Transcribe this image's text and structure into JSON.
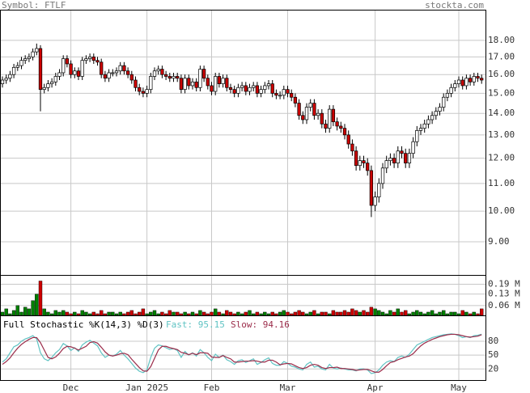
{
  "header": {
    "symbol": "Symbol: FTLF",
    "site": "stockta.com"
  },
  "chart_data": [
    {
      "type": "candlestick",
      "log_scale": true,
      "grid": true,
      "up_color": "#ffffff",
      "down_color": "#cc0000",
      "outline_color": "#000000",
      "ylim": [
        8.03,
        20.0
      ],
      "yticks": [
        {
          "value": 18,
          "label": "18.00"
        },
        {
          "value": 17,
          "label": "17.00"
        },
        {
          "value": 16,
          "label": "16.00"
        },
        {
          "value": 15,
          "label": "15.00"
        },
        {
          "value": 14,
          "label": "14.00"
        },
        {
          "value": 13,
          "label": "13.00"
        },
        {
          "value": 12,
          "label": "12.00"
        },
        {
          "value": 11,
          "label": "11.00"
        },
        {
          "value": 10,
          "label": "10.00"
        },
        {
          "value": 9,
          "label": "9.00"
        }
      ],
      "categories": [
        null,
        null,
        null,
        null,
        null,
        null,
        null,
        null,
        null,
        null,
        null,
        null,
        null,
        null,
        null,
        null,
        null,
        null,
        "Dec",
        null,
        null,
        null,
        null,
        null,
        null,
        null,
        null,
        null,
        null,
        null,
        null,
        null,
        null,
        null,
        null,
        null,
        null,
        null,
        "Jan 2025",
        null,
        null,
        null,
        null,
        null,
        null,
        null,
        null,
        null,
        null,
        null,
        null,
        null,
        null,
        null,
        null,
        "Feb",
        null,
        null,
        null,
        null,
        null,
        null,
        null,
        null,
        null,
        null,
        null,
        null,
        null,
        null,
        null,
        null,
        null,
        null,
        null,
        "Mar",
        null,
        null,
        null,
        null,
        null,
        null,
        null,
        null,
        null,
        null,
        null,
        null,
        null,
        null,
        null,
        null,
        null,
        null,
        null,
        null,
        null,
        null,
        "Apr",
        null,
        null,
        null,
        null,
        null,
        null,
        null,
        null,
        null,
        null,
        null,
        null,
        null,
        null,
        null,
        null,
        null,
        null,
        null,
        null,
        null,
        "May",
        null,
        null,
        null,
        null,
        null,
        null
      ],
      "open": [
        15.5,
        15.7,
        15.8,
        16.0,
        16.4,
        16.5,
        16.8,
        16.9,
        17.0,
        17.3,
        17.5,
        15.2,
        15.3,
        15.5,
        15.6,
        15.9,
        16.1,
        16.9,
        16.6,
        16.0,
        16.2,
        15.9,
        16.8,
        16.9,
        17.0,
        16.8,
        16.7,
        16.0,
        15.8,
        16.1,
        16.1,
        16.2,
        16.5,
        16.2,
        16.0,
        15.7,
        15.3,
        15.1,
        15.0,
        15.2,
        15.9,
        16.2,
        16.3,
        16.0,
        15.9,
        15.8,
        15.9,
        15.8,
        15.2,
        15.8,
        15.4,
        15.6,
        15.3,
        16.3,
        15.8,
        15.4,
        15.1,
        15.9,
        15.5,
        15.8,
        15.3,
        15.2,
        15.0,
        15.3,
        15.4,
        15.1,
        15.3,
        15.4,
        15.0,
        15.2,
        15.4,
        15.5,
        15.0,
        14.9,
        14.9,
        15.2,
        15.0,
        14.8,
        14.5,
        13.9,
        13.7,
        14.3,
        14.5,
        13.9,
        14.0,
        13.5,
        13.3,
        14.2,
        13.6,
        13.4,
        13.3,
        13.0,
        12.6,
        12.3,
        11.7,
        11.9,
        11.8,
        11.5,
        10.2,
        10.5,
        11.0,
        11.6,
        11.9,
        12.0,
        11.8,
        12.3,
        12.2,
        11.8,
        12.2,
        12.7,
        13.2,
        13.3,
        13.5,
        13.7,
        13.9,
        14.1,
        14.3,
        14.8,
        15.0,
        15.3,
        15.5,
        15.7,
        15.4,
        15.8,
        15.6,
        15.9,
        15.8
      ],
      "high": [
        15.9,
        16.0,
        16.2,
        16.6,
        16.7,
        17.0,
        17.1,
        17.2,
        17.5,
        17.8,
        17.7,
        15.5,
        15.7,
        15.8,
        16.1,
        16.3,
        17.1,
        17.1,
        16.8,
        16.4,
        16.4,
        17.0,
        17.1,
        17.2,
        17.2,
        17.0,
        16.9,
        16.2,
        16.3,
        16.3,
        16.4,
        16.7,
        16.7,
        16.4,
        16.2,
        15.9,
        15.5,
        15.3,
        15.4,
        16.1,
        16.4,
        16.5,
        16.5,
        16.2,
        16.1,
        16.1,
        16.1,
        16.0,
        16.0,
        16.0,
        15.8,
        15.8,
        16.5,
        16.5,
        16.0,
        15.6,
        16.1,
        16.1,
        16.0,
        16.0,
        15.5,
        15.4,
        15.5,
        15.6,
        15.6,
        15.5,
        15.6,
        15.6,
        15.4,
        15.6,
        15.7,
        15.7,
        15.2,
        15.1,
        15.4,
        15.4,
        15.2,
        15.0,
        14.7,
        14.1,
        14.5,
        14.7,
        14.7,
        14.2,
        14.2,
        13.7,
        14.4,
        14.4,
        13.8,
        13.6,
        13.5,
        13.2,
        12.8,
        12.5,
        12.1,
        12.1,
        12.0,
        11.7,
        10.7,
        11.2,
        11.8,
        12.1,
        12.2,
        12.2,
        12.5,
        12.5,
        12.4,
        12.4,
        12.9,
        13.4,
        13.5,
        13.7,
        13.9,
        14.1,
        14.3,
        14.5,
        15.0,
        15.2,
        15.5,
        15.7,
        15.9,
        15.9,
        16.0,
        16.0,
        16.1,
        16.1,
        16.0
      ],
      "low": [
        15.3,
        15.5,
        15.6,
        15.8,
        16.2,
        16.3,
        16.6,
        16.7,
        16.8,
        17.1,
        14.1,
        15.0,
        15.1,
        15.3,
        15.4,
        15.7,
        15.9,
        16.4,
        15.8,
        15.8,
        15.7,
        15.7,
        16.6,
        16.7,
        16.6,
        16.5,
        15.8,
        15.6,
        15.6,
        15.9,
        15.9,
        16.0,
        16.0,
        15.8,
        15.5,
        15.1,
        14.9,
        14.8,
        14.8,
        15.0,
        15.7,
        16.0,
        15.8,
        15.7,
        15.6,
        15.6,
        15.6,
        15.0,
        15.0,
        15.2,
        15.2,
        15.1,
        15.1,
        15.6,
        15.2,
        14.9,
        14.9,
        15.3,
        15.3,
        15.1,
        15.0,
        14.8,
        14.8,
        15.1,
        14.9,
        14.9,
        15.1,
        14.8,
        14.8,
        15.0,
        15.2,
        14.8,
        14.7,
        14.7,
        14.7,
        14.8,
        14.6,
        14.3,
        13.7,
        13.5,
        13.5,
        14.1,
        13.7,
        13.7,
        13.3,
        13.1,
        13.1,
        13.4,
        13.2,
        13.1,
        12.8,
        12.4,
        12.1,
        11.5,
        11.5,
        11.6,
        11.3,
        9.8,
        10.0,
        10.3,
        10.8,
        11.4,
        11.7,
        11.6,
        11.6,
        12.0,
        11.6,
        11.6,
        12.0,
        12.5,
        13.0,
        13.1,
        13.3,
        13.5,
        13.7,
        13.9,
        14.1,
        14.6,
        14.8,
        15.1,
        15.3,
        15.2,
        15.2,
        15.4,
        15.4,
        15.6,
        15.5
      ],
      "close": [
        15.7,
        15.8,
        16.0,
        16.4,
        16.5,
        16.8,
        16.9,
        17.0,
        17.3,
        17.5,
        15.2,
        15.3,
        15.5,
        15.6,
        15.9,
        16.1,
        16.9,
        16.6,
        16.0,
        16.2,
        15.9,
        16.8,
        16.9,
        17.0,
        16.8,
        16.7,
        16.0,
        15.8,
        16.1,
        16.1,
        16.2,
        16.5,
        16.2,
        16.0,
        15.7,
        15.3,
        15.1,
        15.0,
        15.2,
        15.9,
        16.2,
        16.3,
        16.0,
        15.9,
        15.8,
        15.9,
        15.8,
        15.2,
        15.8,
        15.4,
        15.6,
        15.3,
        16.3,
        15.8,
        15.4,
        15.1,
        15.9,
        15.5,
        15.8,
        15.3,
        15.2,
        15.0,
        15.3,
        15.4,
        15.1,
        15.3,
        15.4,
        15.0,
        15.2,
        15.4,
        15.5,
        15.0,
        14.9,
        14.9,
        15.2,
        15.0,
        14.8,
        14.5,
        13.9,
        13.7,
        14.3,
        14.5,
        13.9,
        14.0,
        13.5,
        13.3,
        14.2,
        13.6,
        13.4,
        13.3,
        13.0,
        12.6,
        12.3,
        11.7,
        11.9,
        11.8,
        11.5,
        10.2,
        10.5,
        11.0,
        11.6,
        11.9,
        12.0,
        11.8,
        12.3,
        12.2,
        11.8,
        12.2,
        12.7,
        13.2,
        13.3,
        13.5,
        13.7,
        13.9,
        14.1,
        14.3,
        14.8,
        15.0,
        15.3,
        15.5,
        15.7,
        15.4,
        15.8,
        15.6,
        15.9,
        15.8,
        15.7
      ]
    },
    {
      "type": "bar",
      "up_color": "#008000",
      "down_color": "#cc0000",
      "ylim": [
        0,
        0.247
      ],
      "yticks": [
        {
          "value": 0.19,
          "label": "0.19 M"
        },
        {
          "value": 0.13,
          "label": "0.13 M"
        },
        {
          "value": 0.06,
          "label": "0.06 M"
        }
      ],
      "values": [
        0.02,
        0.04,
        0.01,
        0.03,
        0.06,
        0.02,
        0.05,
        0.04,
        0.09,
        0.13,
        0.21,
        0.04,
        0.02,
        0.01,
        0.03,
        0.02,
        0.03,
        0.02,
        0.01,
        0.02,
        0.01,
        0.03,
        0.02,
        0.01,
        0.02,
        0.01,
        0.03,
        0.01,
        0.02,
        0.02,
        0.01,
        0.02,
        0.01,
        0.02,
        0.03,
        0.01,
        0.02,
        0.04,
        0.01,
        0.02,
        0.03,
        0.01,
        0.02,
        0.01,
        0.03,
        0.02,
        0.02,
        0.01,
        0.02,
        0.01,
        0.02,
        0.01,
        0.03,
        0.02,
        0.01,
        0.02,
        0.04,
        0.02,
        0.01,
        0.03,
        0.02,
        0.01,
        0.02,
        0.01,
        0.02,
        0.03,
        0.01,
        0.02,
        0.01,
        0.02,
        0.01,
        0.02,
        0.01,
        0.02,
        0.03,
        0.02,
        0.01,
        0.02,
        0.03,
        0.02,
        0.01,
        0.02,
        0.03,
        0.01,
        0.02,
        0.02,
        0.01,
        0.03,
        0.02,
        0.02,
        0.03,
        0.02,
        0.04,
        0.03,
        0.02,
        0.03,
        0.02,
        0.05,
        0.04,
        0.03,
        0.02,
        0.01,
        0.03,
        0.02,
        0.04,
        0.02,
        0.03,
        0.01,
        0.02,
        0.03,
        0.02,
        0.01,
        0.02,
        0.03,
        0.01,
        0.02,
        0.03,
        0.01,
        0.02,
        0.02,
        0.01,
        0.03,
        0.02,
        0.01,
        0.02,
        0.01,
        0.04
      ]
    },
    {
      "type": "line",
      "title": "Full Stochastic %K(14,3) %D(3)",
      "ylim": [
        -4,
        136
      ],
      "yticks": [
        20,
        50,
        80
      ],
      "series": [
        {
          "name": "Fast: 95.15",
          "color": "#5fc3c3",
          "values": [
            35,
            42,
            55,
            68,
            72,
            80,
            85,
            88,
            92,
            85,
            55,
            42,
            38,
            45,
            55,
            62,
            75,
            70,
            60,
            66,
            58,
            72,
            78,
            82,
            76,
            70,
            55,
            45,
            50,
            48,
            52,
            60,
            50,
            42,
            32,
            22,
            15,
            12,
            18,
            45,
            65,
            72,
            70,
            66,
            62,
            64,
            60,
            45,
            58,
            50,
            55,
            48,
            62,
            55,
            45,
            38,
            52,
            45,
            50,
            40,
            36,
            30,
            38,
            40,
            34,
            38,
            42,
            30,
            34,
            40,
            44,
            32,
            28,
            28,
            36,
            32,
            26,
            24,
            20,
            18,
            30,
            35,
            24,
            26,
            20,
            18,
            30,
            22,
            20,
            22,
            20,
            18,
            18,
            16,
            20,
            20,
            18,
            10,
            12,
            18,
            28,
            35,
            38,
            36,
            45,
            48,
            45,
            52,
            62,
            72,
            76,
            80,
            84,
            88,
            90,
            92,
            94,
            95,
            96,
            95,
            92,
            88,
            90,
            88,
            92,
            93,
            95.15
          ]
        },
        {
          "name": "Slow: 94.16",
          "color": "#9b2c4a",
          "values": [
            30,
            36,
            44,
            55,
            65,
            73,
            79,
            84,
            88,
            88,
            77,
            61,
            45,
            42,
            46,
            54,
            64,
            69,
            68,
            65,
            61,
            65,
            69,
            77,
            79,
            76,
            67,
            57,
            50,
            48,
            50,
            53,
            54,
            51,
            41,
            32,
            23,
            16,
            15,
            25,
            43,
            61,
            69,
            69,
            66,
            64,
            62,
            56,
            54,
            51,
            54,
            51,
            55,
            55,
            54,
            46,
            45,
            45,
            49,
            45,
            42,
            35,
            35,
            36,
            37,
            37,
            38,
            37,
            35,
            35,
            39,
            39,
            35,
            29,
            31,
            32,
            31,
            27,
            23,
            21,
            23,
            28,
            30,
            28,
            23,
            21,
            23,
            23,
            24,
            21,
            21,
            20,
            19,
            17,
            18,
            19,
            19,
            16,
            13,
            13,
            19,
            27,
            34,
            36,
            40,
            43,
            46,
            48,
            53,
            62,
            70,
            76,
            80,
            84,
            87,
            90,
            92,
            94,
            95,
            95,
            94,
            92,
            90,
            89,
            90,
            91,
            94.16
          ]
        }
      ]
    }
  ]
}
